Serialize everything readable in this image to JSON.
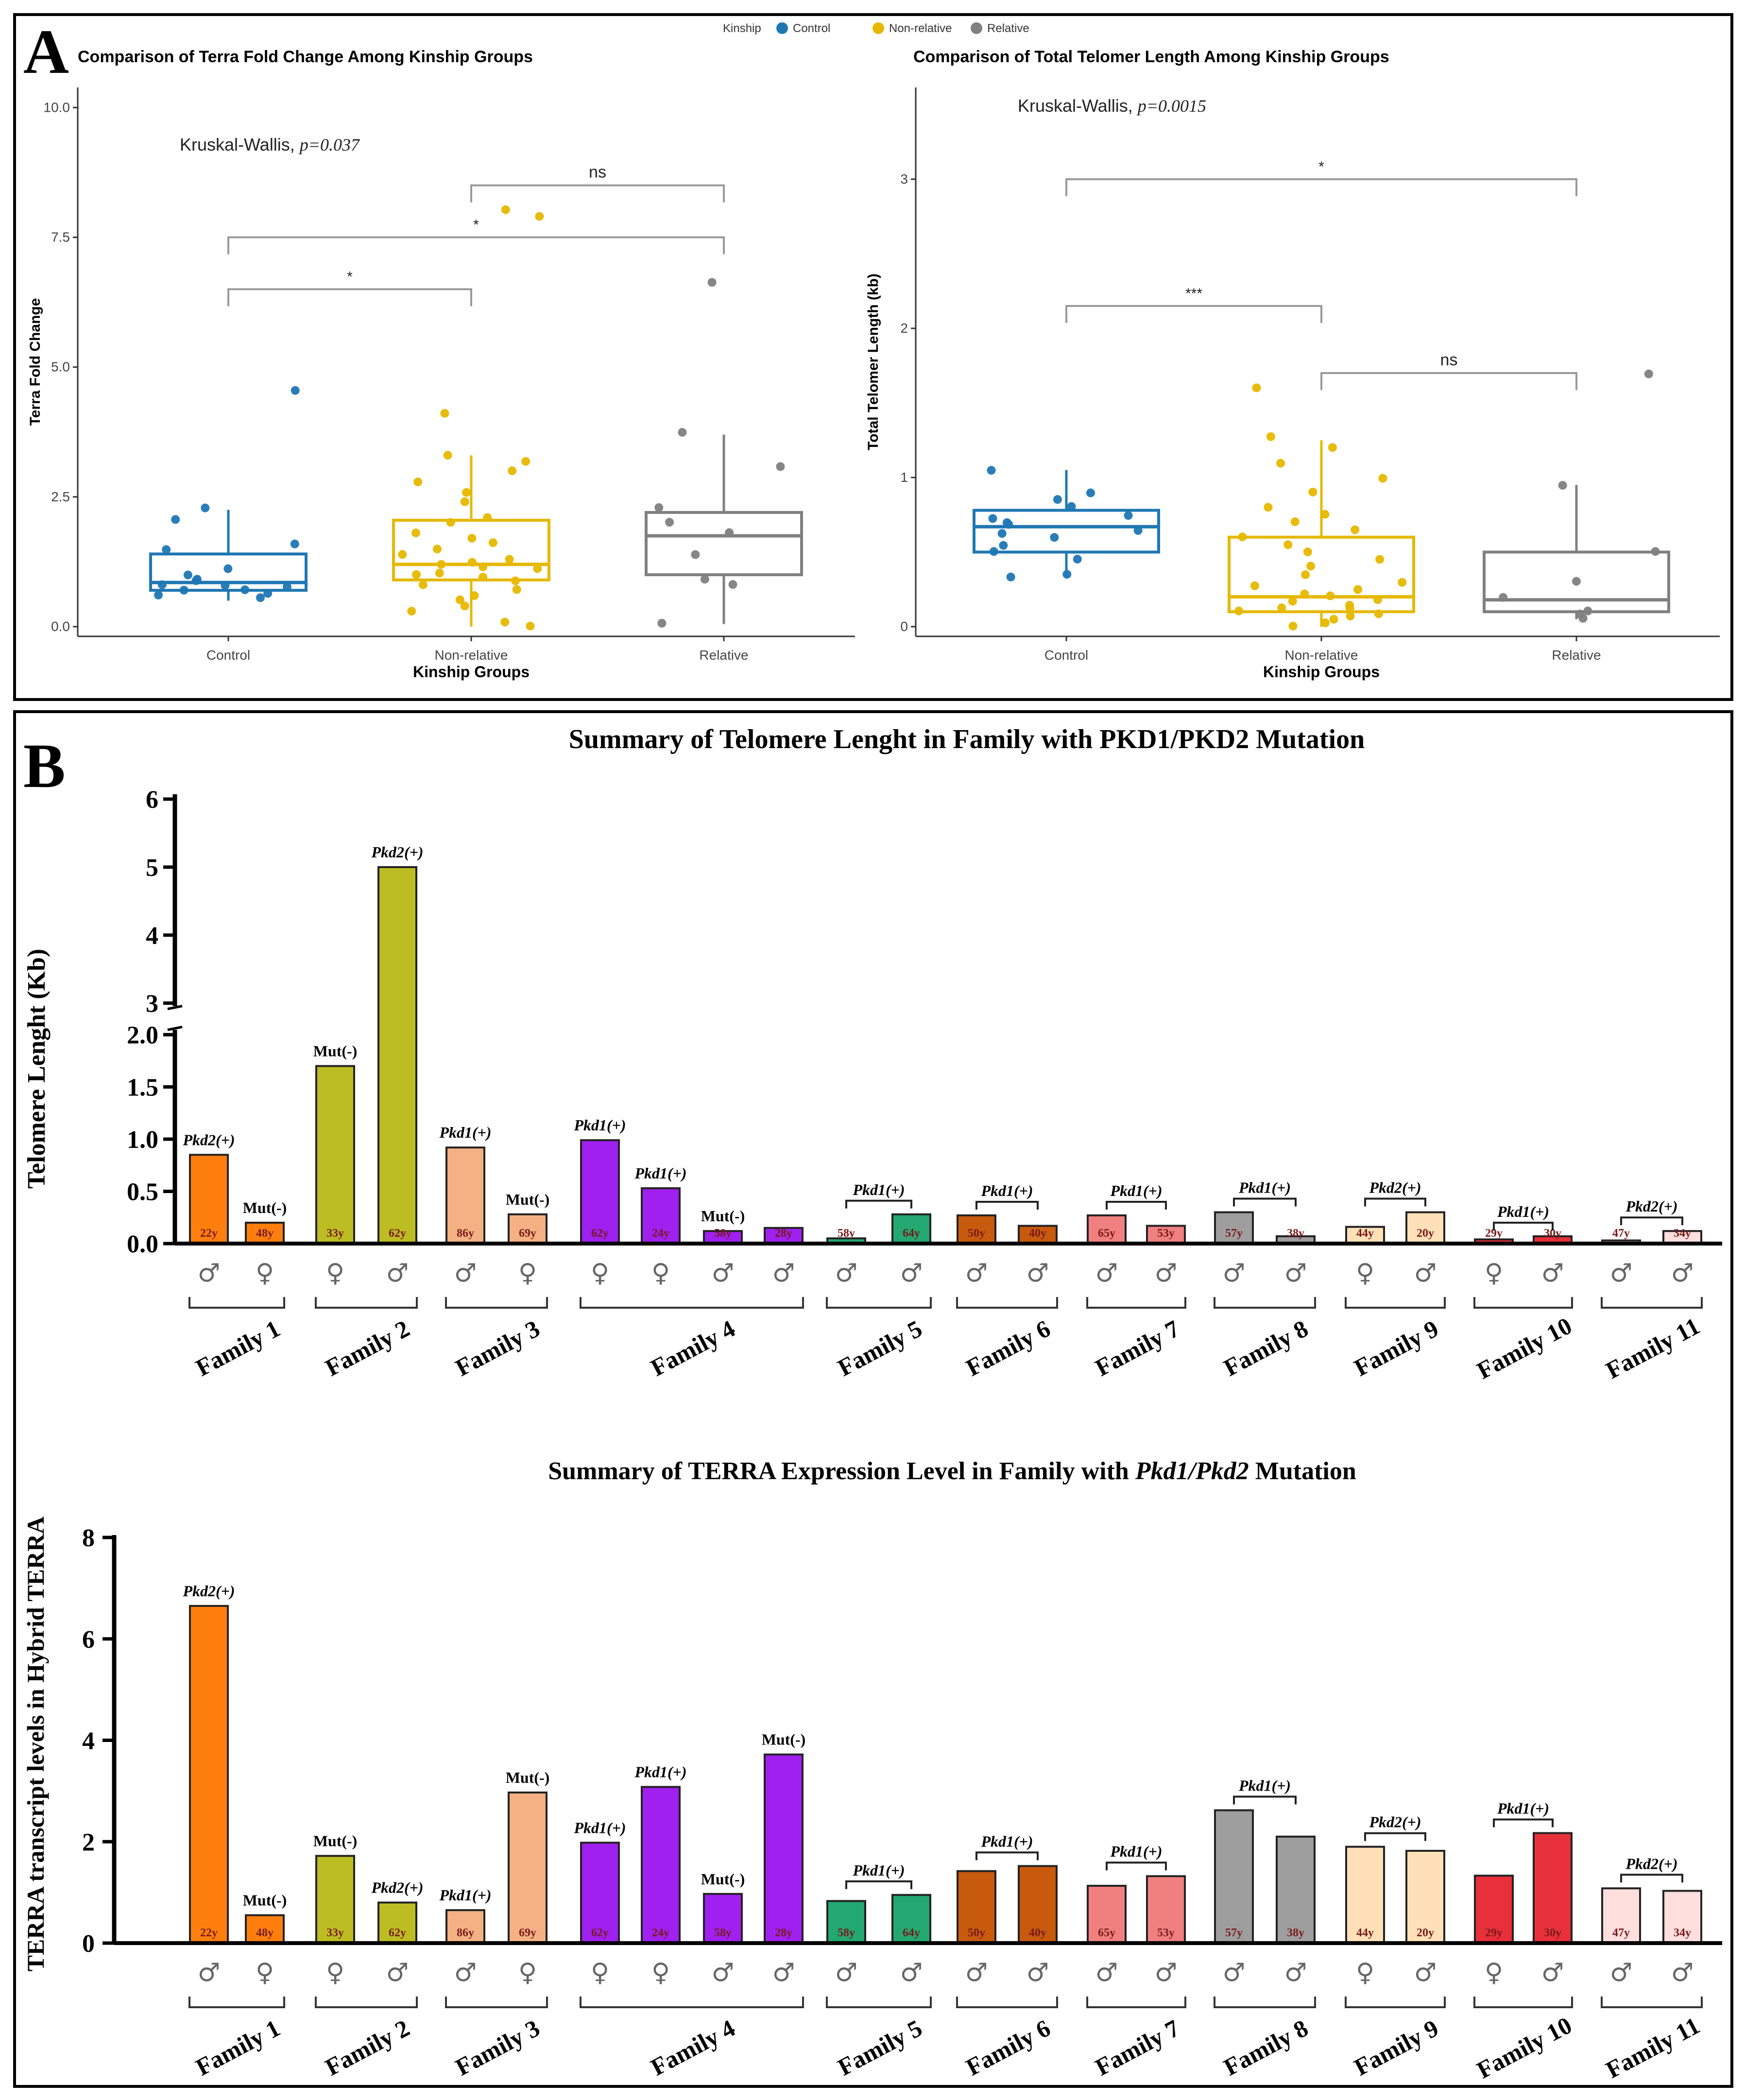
{
  "colors": {
    "control": "#1f77b4",
    "non_relative": "#e6b800",
    "relative": "#808080",
    "families": [
      "#ff7f0e",
      "#bcbd22",
      "#f4b183",
      "#a020f0",
      "#22a870",
      "#c85a0e",
      "#f08080",
      "#9e9e9e",
      "#ffe0b8",
      "#e8303a",
      "#ffdede"
    ]
  },
  "chart_data": [
    {
      "panel": "A",
      "type": "box",
      "title": "Comparison of Terra Fold Change Among Kinship Groups",
      "xlabel": "Kinship Groups",
      "ylabel": "Terra Fold Change",
      "categories": [
        "Control",
        "Non-relative",
        "Relative"
      ],
      "yticks": [
        "0.0",
        "2.5",
        "5.0",
        "7.5",
        "10.0"
      ],
      "ylim": [
        0,
        10.2
      ],
      "stat": {
        "prefix": "Kruskal-Wallis, ",
        "p": "p=0.037"
      },
      "comparisons": [
        {
          "from": 0,
          "to": 1,
          "label": "*",
          "y": 6.5
        },
        {
          "from": 0,
          "to": 2,
          "label": "*",
          "y": 7.5
        },
        {
          "from": 1,
          "to": 2,
          "label": "ns",
          "y": 8.5
        }
      ],
      "boxes": [
        {
          "q1": 0.7,
          "median": 0.85,
          "q3": 1.4,
          "whisker_low": 0.5,
          "whisker_high": 2.25
        },
        {
          "q1": 0.9,
          "median": 1.2,
          "q3": 2.05,
          "whisker_low": 0.0,
          "whisker_high": 3.3
        },
        {
          "q1": 1.0,
          "median": 1.75,
          "q3": 2.2,
          "whisker_low": 0.05,
          "whisker_high": 3.7
        }
      ],
      "points": [
        [
          0.6,
          0.7,
          0.8,
          0.9,
          1.0,
          1.5,
          1.6,
          2.05,
          2.3,
          0.75,
          0.55,
          0.65,
          0.8,
          0.9,
          1.1,
          0.7,
          4.55
        ],
        [
          0.0,
          0.1,
          0.3,
          0.5,
          0.7,
          0.8,
          0.9,
          1.0,
          1.1,
          1.2,
          1.3,
          1.4,
          1.5,
          1.6,
          1.7,
          1.8,
          2.0,
          2.1,
          2.4,
          2.6,
          2.8,
          3.0,
          3.2,
          3.3,
          1.25,
          1.15,
          1.05,
          0.95,
          0.6,
          0.4,
          4.1,
          7.9,
          8.05
        ],
        [
          0.05,
          0.8,
          0.9,
          1.4,
          1.8,
          2.0,
          2.3,
          3.1,
          3.75,
          6.65
        ]
      ],
      "legend": {
        "title": "Kinship",
        "items": [
          "Control",
          "Non-relative",
          "Relative"
        ]
      }
    },
    {
      "panel": "A",
      "type": "box",
      "title": "Comparison of Total Telomer Length Among Kinship Groups",
      "xlabel": "Kinship Groups",
      "ylabel": "Total Telomer Length (kb)",
      "categories": [
        "Control",
        "Non-relative",
        "Relative"
      ],
      "yticks": [
        "0",
        "1",
        "2",
        "3"
      ],
      "ylim": [
        0,
        3.55
      ],
      "stat": {
        "prefix": "Kruskal-Wallis, ",
        "p": "p=0.0015"
      },
      "comparisons": [
        {
          "from": 0,
          "to": 1,
          "label": "***",
          "y": 2.15
        },
        {
          "from": 0,
          "to": 2,
          "label": "*",
          "y": 3.0
        },
        {
          "from": 1,
          "to": 2,
          "label": "ns",
          "y": 1.7
        }
      ],
      "boxes": [
        {
          "q1": 0.5,
          "median": 0.67,
          "q3": 0.78,
          "whisker_low": 0.33,
          "whisker_high": 1.05
        },
        {
          "q1": 0.1,
          "median": 0.2,
          "q3": 0.6,
          "whisker_low": 0.0,
          "whisker_high": 1.25
        },
        {
          "q1": 0.1,
          "median": 0.18,
          "q3": 0.5,
          "whisker_low": 0.05,
          "whisker_high": 0.95
        }
      ],
      "points": [
        [
          0.33,
          0.35,
          0.45,
          0.55,
          0.6,
          0.65,
          0.7,
          0.72,
          0.75,
          0.8,
          0.85,
          0.9,
          1.05,
          0.62,
          0.68,
          0.5
        ],
        [
          0.0,
          0.03,
          0.05,
          0.08,
          0.1,
          0.12,
          0.15,
          0.18,
          0.2,
          0.22,
          0.25,
          0.3,
          0.35,
          0.4,
          0.5,
          0.6,
          0.7,
          0.8,
          0.9,
          1.0,
          1.1,
          1.2,
          1.28,
          0.07,
          0.13,
          0.17,
          0.28,
          0.45,
          0.55,
          0.65,
          0.75,
          1.6
        ],
        [
          0.05,
          0.08,
          0.1,
          0.2,
          0.3,
          0.5,
          0.95,
          1.7
        ]
      ]
    },
    {
      "panel": "B",
      "type": "bar",
      "title": "Summary of Telomere Lenght in Family with PKD1/PKD2 Mutation",
      "ylabel": "Telomere Lenght (Kb)",
      "yticks_lower": [
        "0.0",
        "0.5",
        "1.0",
        "1.5",
        "2.0"
      ],
      "yticks_upper": [
        "3",
        "4",
        "5",
        "6"
      ],
      "ylim_lower": [
        0,
        2.0
      ],
      "ylim_upper": [
        3,
        6
      ],
      "families": [
        "Family 1",
        "Family 2",
        "Family 3",
        "Family 4",
        "Family 5",
        "Family 6",
        "Family 7",
        "Family 8",
        "Family 9",
        "Family 10",
        "Family 11"
      ],
      "bars": [
        {
          "family": 0,
          "value": 0.85,
          "age": "22y",
          "sex": "♂",
          "label": "Pkd2(+)"
        },
        {
          "family": 0,
          "value": 0.2,
          "age": "48y",
          "sex": "♀",
          "label": "Mut(-)"
        },
        {
          "family": 1,
          "value": 1.7,
          "age": "33y",
          "sex": "♀",
          "label": "Mut(-)"
        },
        {
          "family": 1,
          "value": 5.0,
          "age": "62y",
          "sex": "♂",
          "label": "Pkd2(+)"
        },
        {
          "family": 2,
          "value": 0.92,
          "age": "86y",
          "sex": "♂",
          "label": "Pkd1(+)"
        },
        {
          "family": 2,
          "value": 0.28,
          "age": "69y",
          "sex": "♀",
          "label": "Mut(-)"
        },
        {
          "family": 3,
          "value": 0.99,
          "age": "62y",
          "sex": "♀",
          "label": "Pkd1(+)"
        },
        {
          "family": 3,
          "value": 0.53,
          "age": "24y",
          "sex": "♀",
          "label": "Pkd1(+)"
        },
        {
          "family": 3,
          "value": 0.12,
          "age": "58y",
          "sex": "♂",
          "label": "Mut(-)"
        },
        {
          "family": 3,
          "value": 0.15,
          "age": "28y",
          "sex": "♂",
          "label": ""
        },
        {
          "family": 4,
          "value": 0.05,
          "age": "58y",
          "sex": "♂",
          "label": ""
        },
        {
          "family": 4,
          "value": 0.28,
          "age": "64y",
          "sex": "♂",
          "label": ""
        },
        {
          "family": 5,
          "value": 0.27,
          "age": "50y",
          "sex": "♂",
          "label": ""
        },
        {
          "family": 5,
          "value": 0.17,
          "age": "40y",
          "sex": "♂",
          "label": ""
        },
        {
          "family": 6,
          "value": 0.27,
          "age": "65y",
          "sex": "♂",
          "label": ""
        },
        {
          "family": 6,
          "value": 0.17,
          "age": "53y",
          "sex": "♂",
          "label": ""
        },
        {
          "family": 7,
          "value": 0.3,
          "age": "57y",
          "sex": "♂",
          "label": ""
        },
        {
          "family": 7,
          "value": 0.07,
          "age": "38y",
          "sex": "♂",
          "label": ""
        },
        {
          "family": 8,
          "value": 0.16,
          "age": "44y",
          "sex": "♀",
          "label": ""
        },
        {
          "family": 8,
          "value": 0.3,
          "age": "20y",
          "sex": "♂",
          "label": ""
        },
        {
          "family": 9,
          "value": 0.04,
          "age": "29y",
          "sex": "♀",
          "label": ""
        },
        {
          "family": 9,
          "value": 0.07,
          "age": "30y",
          "sex": "♂",
          "label": ""
        },
        {
          "family": 10,
          "value": 0.03,
          "age": "47y",
          "sex": "♂",
          "label": ""
        },
        {
          "family": 10,
          "value": 0.12,
          "age": "34y",
          "sex": "♂",
          "label": ""
        }
      ],
      "family_brackets": [
        {
          "family": 4,
          "label": "Pkd1(+)"
        },
        {
          "family": 5,
          "label": "Pkd1(+)"
        },
        {
          "family": 6,
          "label": "Pkd1(+)"
        },
        {
          "family": 7,
          "label": "Pkd1(+)"
        },
        {
          "family": 8,
          "label": "Pkd2(+)"
        },
        {
          "family": 9,
          "label": "Pkd1(+)"
        },
        {
          "family": 10,
          "label": "Pkd2(+)"
        }
      ]
    },
    {
      "panel": "B",
      "type": "bar",
      "title_prefix": "Summary of TERRA Expression Level in Family with ",
      "title_italic": "Pkd1/Pkd2",
      "title_suffix": " Mutation",
      "ylabel": "TERRA transcript levels in Hybrid TERRA",
      "yticks": [
        "0",
        "2",
        "4",
        "6",
        "8"
      ],
      "ylim": [
        0,
        8
      ],
      "families": [
        "Family 1",
        "Family 2",
        "Family 3",
        "Family 4",
        "Family 5",
        "Family 6",
        "Family 7",
        "Family 8",
        "Family 9",
        "Family 10",
        "Family 11"
      ],
      "bars": [
        {
          "family": 0,
          "value": 6.65,
          "age": "22y",
          "sex": "♂",
          "label": "Pkd2(+)"
        },
        {
          "family": 0,
          "value": 0.55,
          "age": "48y",
          "sex": "♀",
          "label": "Mut(-)"
        },
        {
          "family": 1,
          "value": 1.72,
          "age": "33y",
          "sex": "♀",
          "label": "Mut(-)"
        },
        {
          "family": 1,
          "value": 0.8,
          "age": "62y",
          "sex": "♂",
          "label": "Pkd2(+)"
        },
        {
          "family": 2,
          "value": 0.65,
          "age": "86y",
          "sex": "♂",
          "label": "Pkd1(+)"
        },
        {
          "family": 2,
          "value": 2.97,
          "age": "69y",
          "sex": "♀",
          "label": "Mut(-)"
        },
        {
          "family": 3,
          "value": 1.98,
          "age": "62y",
          "sex": "♀",
          "label": "Pkd1(+)"
        },
        {
          "family": 3,
          "value": 3.08,
          "age": "24y",
          "sex": "♀",
          "label": "Pkd1(+)"
        },
        {
          "family": 3,
          "value": 0.97,
          "age": "58y",
          "sex": "♂",
          "label": "Mut(-)"
        },
        {
          "family": 3,
          "value": 3.72,
          "age": "28y",
          "sex": "♂",
          "label": "Mut(-)"
        },
        {
          "family": 4,
          "value": 0.83,
          "age": "58y",
          "sex": "♂",
          "label": ""
        },
        {
          "family": 4,
          "value": 0.95,
          "age": "64y",
          "sex": "♂",
          "label": ""
        },
        {
          "family": 5,
          "value": 1.42,
          "age": "50y",
          "sex": "♂",
          "label": ""
        },
        {
          "family": 5,
          "value": 1.52,
          "age": "40y",
          "sex": "♂",
          "label": ""
        },
        {
          "family": 6,
          "value": 1.13,
          "age": "65y",
          "sex": "♂",
          "label": ""
        },
        {
          "family": 6,
          "value": 1.32,
          "age": "53y",
          "sex": "♂",
          "label": ""
        },
        {
          "family": 7,
          "value": 2.62,
          "age": "57y",
          "sex": "♂",
          "label": ""
        },
        {
          "family": 7,
          "value": 2.1,
          "age": "38y",
          "sex": "♂",
          "label": ""
        },
        {
          "family": 8,
          "value": 1.9,
          "age": "44y",
          "sex": "♀",
          "label": ""
        },
        {
          "family": 8,
          "value": 1.82,
          "age": "20y",
          "sex": "♂",
          "label": ""
        },
        {
          "family": 9,
          "value": 1.33,
          "age": "29y",
          "sex": "♀",
          "label": ""
        },
        {
          "family": 9,
          "value": 2.17,
          "age": "30y",
          "sex": "♂",
          "label": ""
        },
        {
          "family": 10,
          "value": 1.08,
          "age": "47y",
          "sex": "♂",
          "label": ""
        },
        {
          "family": 10,
          "value": 1.03,
          "age": "34y",
          "sex": "♂",
          "label": ""
        }
      ],
      "family_brackets": [
        {
          "family": 4,
          "label": "Pkd1(+)"
        },
        {
          "family": 5,
          "label": "Pkd1(+)"
        },
        {
          "family": 6,
          "label": "Pkd1(+)"
        },
        {
          "family": 7,
          "label": "Pkd1(+)"
        },
        {
          "family": 8,
          "label": "Pkd2(+)"
        },
        {
          "family": 9,
          "label": "Pkd1(+)"
        },
        {
          "family": 10,
          "label": "Pkd2(+)"
        }
      ]
    }
  ],
  "panel_labels": [
    "A",
    "B"
  ]
}
